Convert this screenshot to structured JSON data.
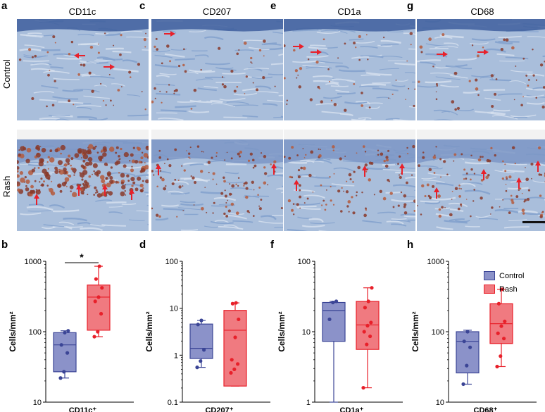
{
  "panels": {
    "top": [
      {
        "letter": "a",
        "title": "CD11c"
      },
      {
        "letter": "c",
        "title": "CD207"
      },
      {
        "letter": "e",
        "title": "CD1a"
      },
      {
        "letter": "g",
        "title": "CD68"
      }
    ],
    "bottom_letters": [
      "b",
      "d",
      "f",
      "h"
    ]
  },
  "row_labels": {
    "control": "Control",
    "rash": "Rash"
  },
  "legend": [
    {
      "label": "Control",
      "color": "#8b92c9",
      "stroke": "#3b4596"
    },
    {
      "label": "Rash",
      "color": "#f07a80",
      "stroke": "#e8202a"
    }
  ],
  "colors": {
    "control_point": "#3b4596",
    "rash_point": "#e8202a",
    "arrow": "#e8202a"
  },
  "chart_data": [
    {
      "type": "box",
      "ylabel": "Cells/mm²",
      "xlabel": "CD11c⁺",
      "yscale": "log",
      "ylim": [
        10,
        1000
      ],
      "yticks": [
        10,
        100,
        1000
      ],
      "significance": "*",
      "series": [
        {
          "name": "Control",
          "box": {
            "min": 22,
            "q1": 27,
            "median": 65,
            "q3": 97,
            "max": 103
          },
          "points": [
            22,
            27,
            50,
            65,
            97,
            103
          ]
        },
        {
          "name": "Rash",
          "box": {
            "min": 85,
            "q1": 105,
            "median": 310,
            "q3": 460,
            "max": 850
          },
          "points": [
            85,
            100,
            180,
            270,
            310,
            420,
            560,
            850
          ]
        }
      ]
    },
    {
      "type": "box",
      "ylabel": "Cells/mm²",
      "xlabel": "CD207⁺",
      "yscale": "log",
      "ylim": [
        0.1,
        100
      ],
      "yticks": [
        0.1,
        1,
        10,
        100
      ],
      "series": [
        {
          "name": "Control",
          "box": {
            "min": 0.55,
            "q1": 0.85,
            "median": 1.4,
            "q3": 4.6,
            "max": 5.5
          },
          "points": [
            0.55,
            0.75,
            1.3,
            4.5,
            5.5
          ]
        },
        {
          "name": "Rash",
          "box": {
            "min": 0.22,
            "q1": 0.22,
            "median": 3.4,
            "q3": 9.0,
            "max": 13
          },
          "points": [
            0.42,
            0.5,
            0.65,
            0.8,
            2.4,
            5.8,
            12.5,
            13
          ]
        }
      ]
    },
    {
      "type": "box",
      "ylabel": "Cells/mm²",
      "xlabel": "CD1a⁺",
      "yscale": "log",
      "ylim": [
        1,
        100
      ],
      "yticks": [
        1,
        10,
        100
      ],
      "series": [
        {
          "name": "Control",
          "box": {
            "min": 1,
            "q1": 7.3,
            "median": 20,
            "q3": 26,
            "max": 27
          },
          "points": [
            15,
            26,
            27
          ]
        },
        {
          "name": "Rash",
          "box": {
            "min": 1.6,
            "q1": 5.6,
            "median": 12.5,
            "q3": 27,
            "max": 42
          },
          "points": [
            1.6,
            6.6,
            8.6,
            10,
            12.2,
            13.5,
            22,
            27,
            42
          ]
        }
      ]
    },
    {
      "type": "box",
      "ylabel": "Cells/mm²",
      "xlabel": "CD68⁺",
      "yscale": "log",
      "ylim": [
        10,
        1000
      ],
      "yticks": [
        10,
        100,
        1000
      ],
      "series": [
        {
          "name": "Control",
          "box": {
            "min": 18,
            "q1": 26,
            "median": 73,
            "q3": 100,
            "max": 105
          },
          "points": [
            18,
            33,
            60,
            73,
            100
          ]
        },
        {
          "name": "Rash",
          "box": {
            "min": 32,
            "q1": 68,
            "median": 130,
            "q3": 250,
            "max": 400
          },
          "points": [
            32,
            45,
            80,
            95,
            120,
            140,
            250,
            400
          ]
        }
      ]
    }
  ]
}
